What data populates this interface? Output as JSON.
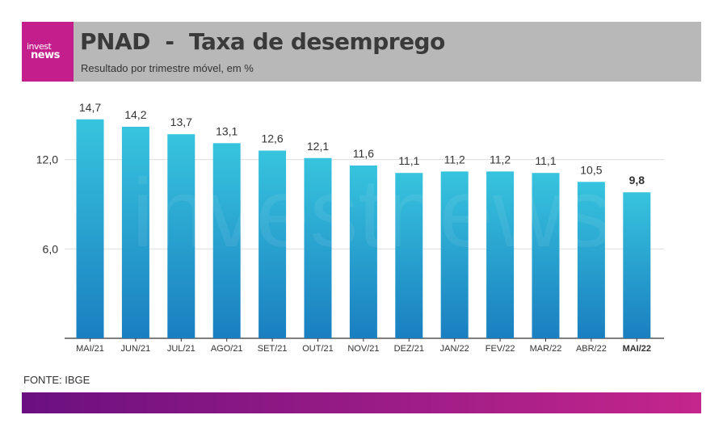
{
  "header": {
    "title": "PNAD  -  Taxa de desemprego",
    "subtitle": "Resultado por trimestre móvel, em %",
    "logo_line1": "invest",
    "logo_line2": "news"
  },
  "watermark": "investnews",
  "source": "FONTE: IBGE",
  "colors": {
    "bar_top": "#37c4de",
    "bar_bottom": "#1a7fc0",
    "header_bg": "#b8b8b8",
    "brand": "#c41e8c"
  },
  "chart_data": {
    "type": "bar",
    "title": "PNAD  -  Taxa de desemprego",
    "subtitle": "Resultado por trimestre móvel, em %",
    "categories": [
      "MAI/21",
      "JUN/21",
      "JUL/21",
      "AGO/21",
      "SET/21",
      "OUT/21",
      "NOV/21",
      "DEZ/21",
      "JAN/22",
      "FEV/22",
      "MAR/22",
      "ABR/22",
      "MAI/22"
    ],
    "values": [
      14.7,
      14.2,
      13.7,
      13.1,
      12.6,
      12.1,
      11.6,
      11.1,
      11.2,
      11.2,
      11.1,
      10.5,
      9.8
    ],
    "value_labels": [
      "14,7",
      "14,2",
      "13,7",
      "13,1",
      "12,6",
      "12,1",
      "11,6",
      "11,1",
      "11,2",
      "11,2",
      "11,1",
      "10,5",
      "9,8"
    ],
    "highlight_index": 12,
    "yticks": [
      6.0,
      12.0
    ],
    "ytick_labels": [
      "6,0",
      "12,0"
    ],
    "ylim": [
      0,
      16
    ],
    "grid": true,
    "legend": "none",
    "xlabel": "",
    "ylabel": ""
  }
}
